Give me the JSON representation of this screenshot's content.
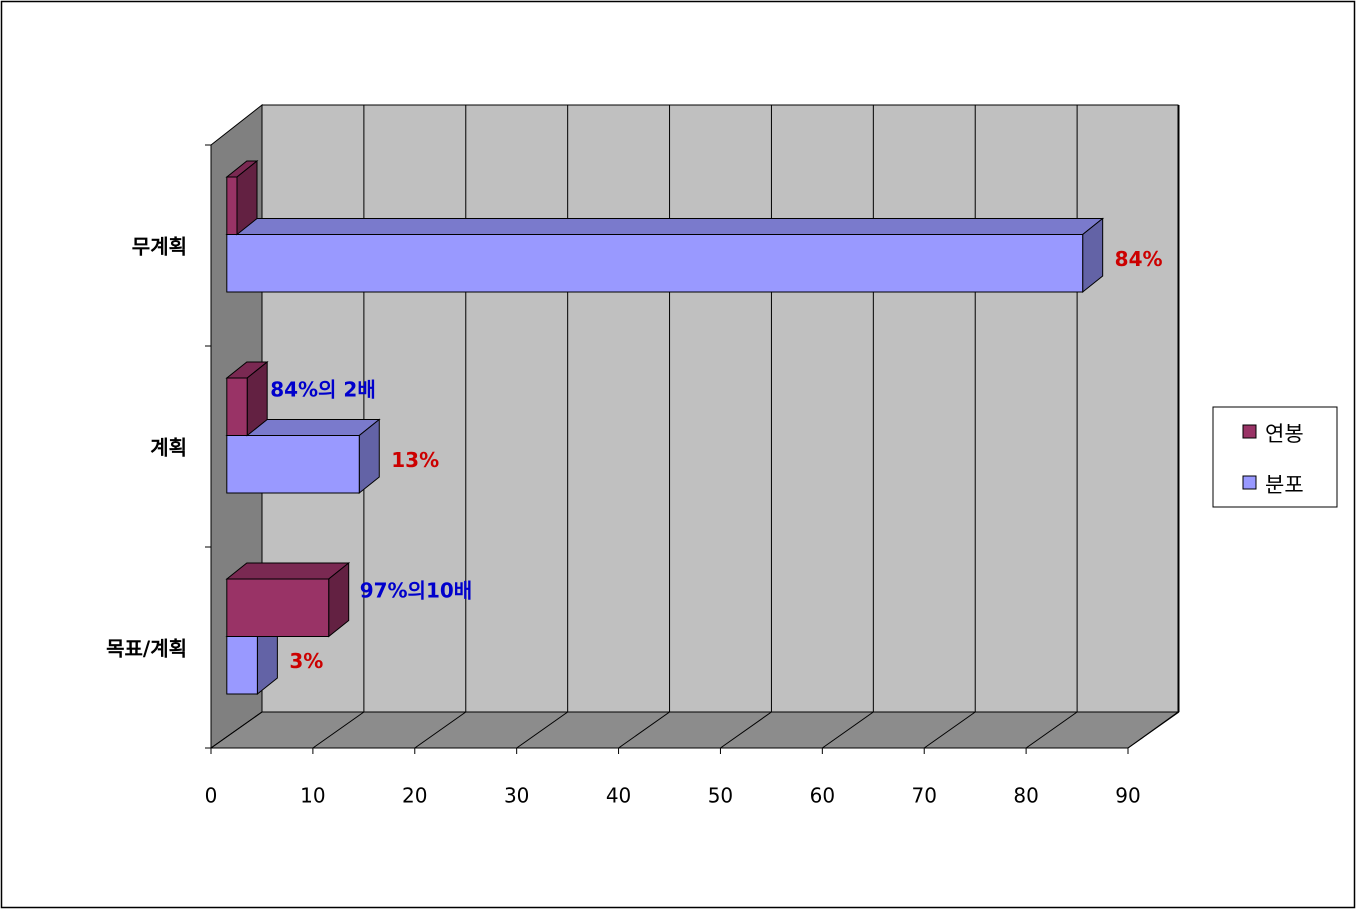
{
  "chart_data": {
    "type": "bar3d_horizontal",
    "categories": [
      "무계획",
      "계획",
      "목표/계획"
    ],
    "series": [
      {
        "name": "연봉",
        "color": "#993366",
        "values": [
          1,
          2,
          10
        ]
      },
      {
        "name": "분포",
        "color": "#9999ff",
        "values": [
          84,
          13,
          3
        ],
        "value_labels": [
          "84%",
          "13%",
          "3%"
        ]
      }
    ],
    "annotations": [
      "84%의 2배",
      "97%의10배"
    ],
    "xlim": [
      0,
      90
    ],
    "xticks": [
      0,
      10,
      20,
      30,
      40,
      50,
      60,
      70,
      80,
      90
    ],
    "grid": true,
    "legend": "right"
  }
}
